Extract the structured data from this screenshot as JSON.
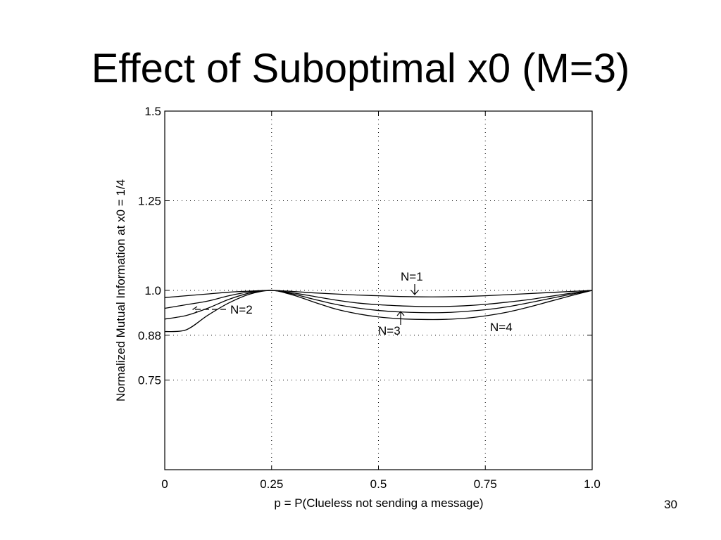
{
  "slide": {
    "title": "Effect of Suboptimal x0 (M=3)",
    "page_number": "30"
  },
  "chart_data": {
    "type": "line",
    "xlabel": "p = P(Clueless not sending a message)",
    "ylabel": "Normalized Mutual Information at x0 = 1/4",
    "xlim": [
      0,
      1
    ],
    "ylim": [
      0.5,
      1.5
    ],
    "x_ticks": [
      {
        "value": 0,
        "label": "0"
      },
      {
        "value": 0.25,
        "label": "0.25"
      },
      {
        "value": 0.5,
        "label": "0.5"
      },
      {
        "value": 0.75,
        "label": "0.75"
      },
      {
        "value": 1.0,
        "label": "1.0"
      }
    ],
    "y_ticks": [
      {
        "value": 0.75,
        "label": "0.75"
      },
      {
        "value": 0.875,
        "label": "0.88"
      },
      {
        "value": 1.0,
        "label": "1.0"
      },
      {
        "value": 1.25,
        "label": "1.25"
      },
      {
        "value": 1.5,
        "label": "1.5"
      }
    ],
    "grid": true,
    "series": [
      {
        "name": "N=1",
        "x": [
          0,
          0.05,
          0.1,
          0.15,
          0.2,
          0.25,
          0.3,
          0.35,
          0.4,
          0.45,
          0.5,
          0.55,
          0.6,
          0.65,
          0.7,
          0.75,
          0.8,
          0.85,
          0.9,
          0.95,
          1.0
        ],
        "y": [
          0.98,
          0.985,
          0.99,
          0.995,
          0.998,
          1.0,
          0.997,
          0.993,
          0.99,
          0.987,
          0.985,
          0.983,
          0.982,
          0.982,
          0.983,
          0.985,
          0.988,
          0.991,
          0.994,
          0.997,
          1.0
        ]
      },
      {
        "name": "N=2",
        "x": [
          0,
          0.05,
          0.1,
          0.15,
          0.2,
          0.25,
          0.3,
          0.35,
          0.4,
          0.45,
          0.5,
          0.55,
          0.6,
          0.65,
          0.7,
          0.75,
          0.8,
          0.85,
          0.9,
          0.95,
          1.0
        ],
        "y": [
          0.95,
          0.96,
          0.97,
          0.985,
          0.996,
          1.0,
          0.993,
          0.983,
          0.973,
          0.965,
          0.96,
          0.957,
          0.955,
          0.955,
          0.957,
          0.961,
          0.967,
          0.974,
          0.983,
          0.992,
          1.0
        ]
      },
      {
        "name": "N=3",
        "x": [
          0,
          0.05,
          0.1,
          0.15,
          0.2,
          0.25,
          0.3,
          0.35,
          0.4,
          0.45,
          0.5,
          0.55,
          0.6,
          0.65,
          0.7,
          0.75,
          0.8,
          0.85,
          0.9,
          0.95,
          1.0
        ],
        "y": [
          0.92,
          0.93,
          0.95,
          0.975,
          0.993,
          1.0,
          0.99,
          0.975,
          0.961,
          0.951,
          0.944,
          0.94,
          0.938,
          0.938,
          0.941,
          0.946,
          0.954,
          0.965,
          0.977,
          0.989,
          1.0
        ]
      },
      {
        "name": "N=4",
        "x": [
          0,
          0.05,
          0.1,
          0.15,
          0.2,
          0.25,
          0.3,
          0.35,
          0.4,
          0.45,
          0.5,
          0.55,
          0.6,
          0.65,
          0.7,
          0.75,
          0.8,
          0.85,
          0.9,
          0.95,
          1.0
        ],
        "y": [
          0.885,
          0.89,
          0.93,
          0.965,
          0.99,
          1.0,
          0.987,
          0.967,
          0.948,
          0.935,
          0.926,
          0.921,
          0.919,
          0.919,
          0.922,
          0.929,
          0.939,
          0.953,
          0.969,
          0.985,
          1.0
        ]
      }
    ],
    "annotations": [
      {
        "id": "n1",
        "text": "N=1"
      },
      {
        "id": "n2",
        "text": "N=2"
      },
      {
        "id": "n3",
        "text": "N=3"
      },
      {
        "id": "n4",
        "text": "N=4"
      }
    ]
  }
}
